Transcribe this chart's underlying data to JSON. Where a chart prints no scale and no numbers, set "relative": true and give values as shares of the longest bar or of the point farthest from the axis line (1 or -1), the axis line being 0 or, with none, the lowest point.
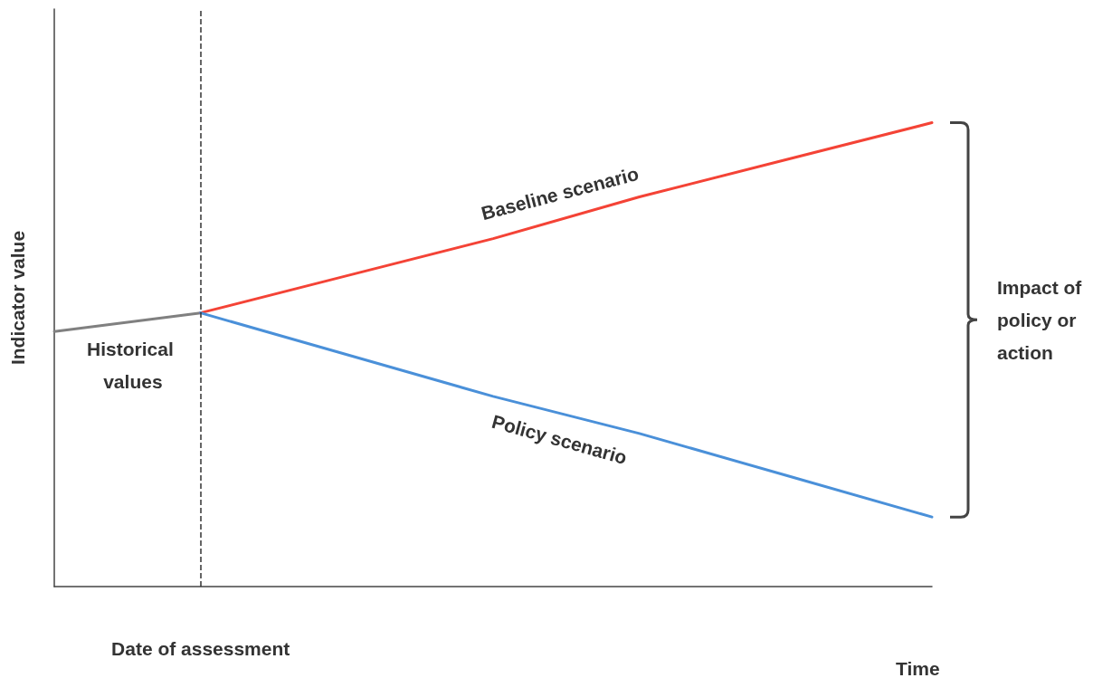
{
  "chart_data": {
    "type": "line",
    "relative": true,
    "ylabel": "Indicator value",
    "xlabel": "Time",
    "categories": [
      null,
      null,
      null,
      null,
      null,
      null,
      null
    ],
    "grid": false,
    "legend": false,
    "marker": "none",
    "series": [
      {
        "name": "Historical values",
        "color": "#808080",
        "values": [
          0.55,
          0.59,
          null,
          null,
          null,
          null,
          null
        ]
      },
      {
        "name": "Baseline scenario",
        "color": "#f44336",
        "values": [
          null,
          0.59,
          0.67,
          0.75,
          0.84,
          0.92,
          1
        ]
      },
      {
        "name": "Policy scenario",
        "color": "#4a90d9",
        "values": [
          null,
          0.59,
          0.5,
          0.41,
          0.33,
          0.24,
          0.15
        ]
      }
    ],
    "ref_lines": [
      {
        "axis": "x",
        "value": null,
        "label": "Date of assessment",
        "line_style": "dashed",
        "color": "#333333"
      }
    ],
    "annotations": [
      "Impact of policy or action"
    ]
  }
}
